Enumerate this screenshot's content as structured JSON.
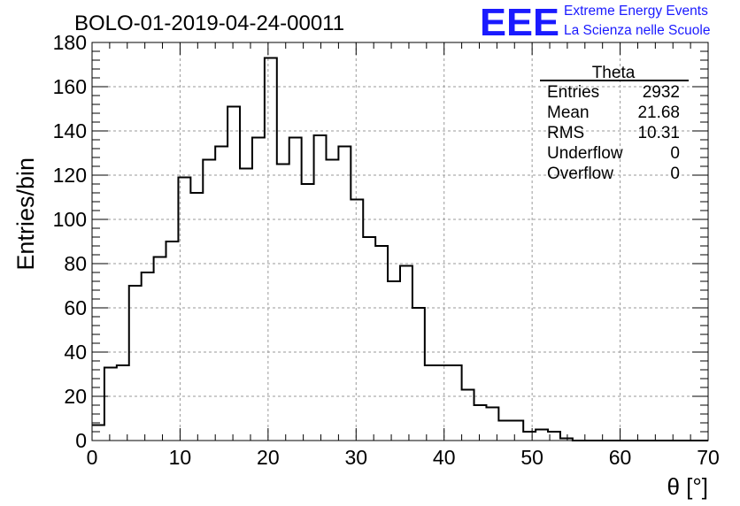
{
  "chart_data": {
    "type": "bar",
    "style": "step-histogram",
    "title": "BOLO-01-2019-04-24-00011",
    "xlabel": "θ [°]",
    "ylabel": "Entries/bin",
    "xlim": [
      0,
      70
    ],
    "ylim": [
      0,
      180
    ],
    "xticks": [
      "0",
      "10",
      "20",
      "30",
      "40",
      "50",
      "60",
      "70"
    ],
    "yticks": [
      "0",
      "20",
      "40",
      "60",
      "80",
      "100",
      "120",
      "140",
      "160",
      "180"
    ],
    "grid": true,
    "bin_width": 1.4,
    "bin_edges_start": 0,
    "values": [
      7,
      33,
      34,
      70,
      76,
      83,
      90,
      119,
      112,
      127,
      133,
      151,
      123,
      137,
      173,
      125,
      137,
      116,
      138,
      127,
      133,
      109,
      92,
      88,
      72,
      79,
      60,
      34,
      34,
      34,
      23,
      16,
      15,
      9,
      9,
      4,
      5,
      4,
      1,
      0,
      0,
      0,
      0,
      0,
      0,
      0,
      0,
      0,
      0,
      0
    ]
  },
  "stats_box": {
    "title": "Theta",
    "rows": [
      {
        "label": "Entries",
        "value": "2932"
      },
      {
        "label": "Mean",
        "value": "21.68"
      },
      {
        "label": "RMS",
        "value": "10.31"
      },
      {
        "label": "Underflow",
        "value": "0"
      },
      {
        "label": "Overflow",
        "value": "0"
      }
    ]
  },
  "logo": {
    "letters": "EEE",
    "line1": "Extreme Energy Events",
    "line2": "La Scienza nelle Scuole",
    "color": "#1a1aff"
  }
}
